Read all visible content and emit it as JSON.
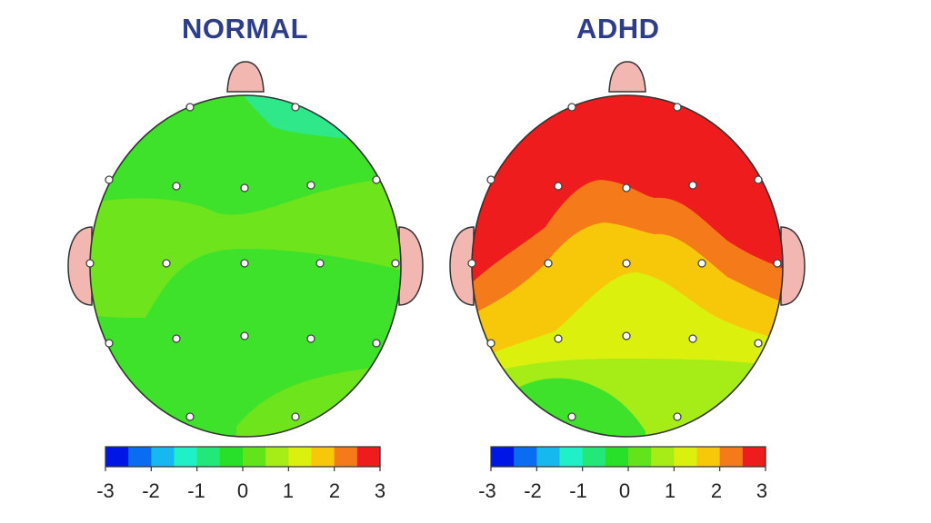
{
  "maps": [
    {
      "title": "NORMAL",
      "scale_ticks": [
        "-3",
        "-2",
        "-1",
        "0",
        "1",
        "2",
        "3"
      ]
    },
    {
      "title": "ADHD",
      "scale_ticks": [
        "-3",
        "-2",
        "-1",
        "0",
        "1",
        "2",
        "3"
      ]
    }
  ],
  "scale": {
    "min": -3,
    "max": 3,
    "colors": [
      "#0016e6",
      "#0a6cf0",
      "#17b7f0",
      "#1ff0c8",
      "#22e87a",
      "#28e02a",
      "#62e41c",
      "#a6ec16",
      "#dcf00e",
      "#f7c70a",
      "#f57a1a",
      "#ee1c1c"
    ]
  },
  "colors": {
    "ear": "#f2b7b0",
    "title": "#2e3d8a",
    "outline": "#333333"
  }
}
